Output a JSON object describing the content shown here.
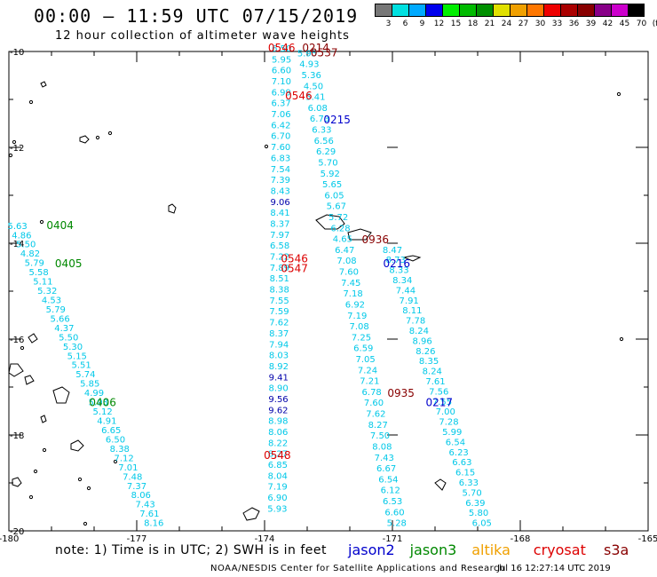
{
  "header": {
    "title": "00:00 — 11:59 UTC 07/15/2019",
    "subtitle": "12 hour collection of altimeter wave heights"
  },
  "colorscale": {
    "labels": [
      "3",
      "6",
      "9",
      "12",
      "15",
      "18",
      "21",
      "24",
      "27",
      "30",
      "33",
      "36",
      "39",
      "42",
      "45",
      "70",
      "(ft)"
    ],
    "colors": [
      "#777777",
      "#00e0e0",
      "#00aaff",
      "#0000ee",
      "#00ee00",
      "#00bb00",
      "#009000",
      "#e0e000",
      "#f0a000",
      "#ff7700",
      "#ee0000",
      "#aa0000",
      "#880000",
      "#880088",
      "#cc00cc",
      "#000000"
    ]
  },
  "axes": {
    "lon_labels": [
      "-180",
      "-177",
      "-174",
      "-171",
      "-168",
      "-165"
    ],
    "lat_labels": [
      "-10",
      "-12",
      "-14",
      "-16",
      "-18",
      "-20"
    ]
  },
  "passes": [
    {
      "label": "0546",
      "color": "#dd0000",
      "lat": -10.0,
      "lon": -173.6
    },
    {
      "label": "0214",
      "color": "#880000",
      "lat": -10.0,
      "lon": -172.8
    },
    {
      "label": "0537",
      "color": "#880000",
      "lat": -10.1,
      "lon": -172.6
    },
    {
      "label": "0546",
      "color": "#dd0000",
      "lat": -11.0,
      "lon": -173.2
    },
    {
      "label": "0215",
      "color": "#0000cc",
      "lat": -11.5,
      "lon": -172.3
    },
    {
      "label": "0404",
      "color": "#008800",
      "lat": -13.7,
      "lon": -178.8
    },
    {
      "label": "0936",
      "color": "#880000",
      "lat": -14.0,
      "lon": -171.4
    },
    {
      "label": "0405",
      "color": "#008800",
      "lat": -14.5,
      "lon": -178.6
    },
    {
      "label": "0546",
      "color": "#dd0000",
      "lat": -14.4,
      "lon": -173.3
    },
    {
      "label": "0547",
      "color": "#dd0000",
      "lat": -14.6,
      "lon": -173.3
    },
    {
      "label": "0216",
      "color": "#0000cc",
      "lat": -14.5,
      "lon": -170.9
    },
    {
      "label": "0406",
      "color": "#008800",
      "lat": -17.4,
      "lon": -177.8
    },
    {
      "label": "0935",
      "color": "#880000",
      "lat": -17.2,
      "lon": -170.8
    },
    {
      "label": "0217",
      "color": "#0000cc",
      "lat": -17.4,
      "lon": -169.9
    },
    {
      "label": "0548",
      "color": "#dd0000",
      "lat": -18.5,
      "lon": -173.7
    }
  ],
  "tracks": [
    {
      "name": "track-center-north",
      "values": [
        "6.50",
        "5.95",
        "6.60",
        "7.10",
        "6.99",
        "6.37",
        "7.06",
        "6.42",
        "6.70",
        "7.60",
        "6.83",
        "7.54",
        "7.39",
        "8.43",
        "9.06",
        "8.41",
        "8.37",
        "7.97",
        "6.58",
        "7.22",
        "7.89",
        "8.51",
        "8.38",
        "7.55",
        "7.59",
        "7.62",
        "8.37",
        "7.94",
        "8.03",
        "8.92",
        "9.41",
        "8.90",
        "9.56",
        "9.62",
        "8.98",
        "8.06",
        "8.22",
        "8.27",
        "6.85",
        "8.04",
        "7.19",
        "6.90",
        "5.93"
      ]
    },
    {
      "name": "track-west",
      "values": [
        "5.63",
        "4.86",
        "5.50",
        "4.82",
        "5.79",
        "5.58",
        "5.11",
        "5.32",
        "4.53",
        "5.79",
        "5.66",
        "4.37",
        "5.50",
        "5.30",
        "5.15",
        "5.51",
        "5.74",
        "5.85",
        "4.99",
        "5.93",
        "5.12",
        "4.91",
        "6.65",
        "6.50",
        "8.38",
        "7.12",
        "7.01",
        "7.48",
        "7.37",
        "8.06",
        "7.43",
        "7.61",
        "8.16"
      ]
    },
    {
      "name": "track-diag-a",
      "values": [
        "5.95",
        "4.93",
        "5.36",
        "4.50",
        "5.41",
        "6.08",
        "6.73",
        "6.33",
        "6.56",
        "6.29",
        "5.70",
        "5.92",
        "5.65",
        "6.05",
        "5.67",
        "5.72",
        "6.28",
        "4.65",
        "6.47",
        "7.08",
        "7.60",
        "7.45",
        "7.18",
        "6.92",
        "7.19",
        "7.08",
        "7.25",
        "6.59",
        "7.05",
        "7.24",
        "7.21",
        "6.78",
        "7.60",
        "7.62",
        "8.27",
        "7.50",
        "8.08",
        "7.43",
        "6.67",
        "6.54",
        "6.12",
        "6.53",
        "6.60",
        "5.28"
      ]
    },
    {
      "name": "track-diag-b",
      "values": [
        "8.47",
        "8.73",
        "8.33",
        "8.34",
        "7.44",
        "7.91",
        "8.11",
        "7.78",
        "8.24",
        "8.96",
        "8.26",
        "8.35",
        "8.24",
        "7.61",
        "7.56",
        "7.55",
        "7.00",
        "7.28",
        "5.99",
        "6.54",
        "6.23",
        "6.63",
        "6.15",
        "6.33",
        "5.70",
        "6.39",
        "5.80",
        "6.05"
      ]
    }
  ],
  "footer": {
    "note": "note: 1) Time is in UTC; 2) SWH is in feet",
    "legend": [
      {
        "label": "jason2",
        "color": "#0000cc"
      },
      {
        "label": "jason3",
        "color": "#008800"
      },
      {
        "label": "altika",
        "color": "#f0a000"
      },
      {
        "label": "cryosat",
        "color": "#dd0000"
      },
      {
        "label": "s3a",
        "color": "#880000"
      }
    ],
    "credit": "NOAA/NESDIS Center for Satellite Applications and Research",
    "timestamp": "Jul 16 12:27:14 UTC 2019"
  }
}
